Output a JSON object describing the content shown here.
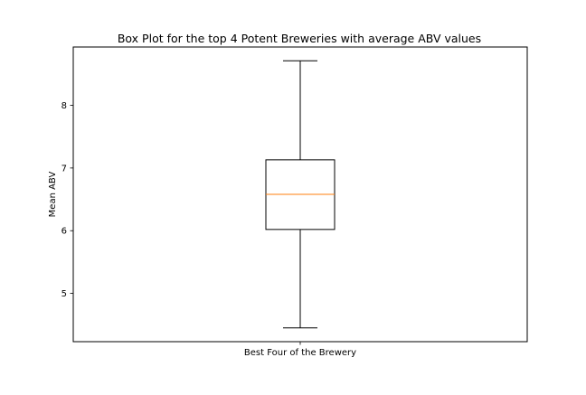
{
  "chart_data": {
    "type": "box",
    "title": "Box Plot for the top 4 Potent Breweries with average ABV values",
    "xlabel": "",
    "ylabel": "Mean ABV",
    "categories": [
      "Best Four of the Brewery"
    ],
    "boxes": [
      {
        "label": "Best Four of the Brewery",
        "whisker_low": 4.45,
        "q1": 6.02,
        "median": 6.58,
        "q3": 7.13,
        "whisker_high": 8.71
      }
    ],
    "y_ticks": [
      5,
      6,
      7,
      8
    ],
    "ylim": [
      4.23,
      8.93
    ],
    "grid": false,
    "colors": {
      "box": "#000000",
      "median": "#ff7f0e"
    }
  }
}
